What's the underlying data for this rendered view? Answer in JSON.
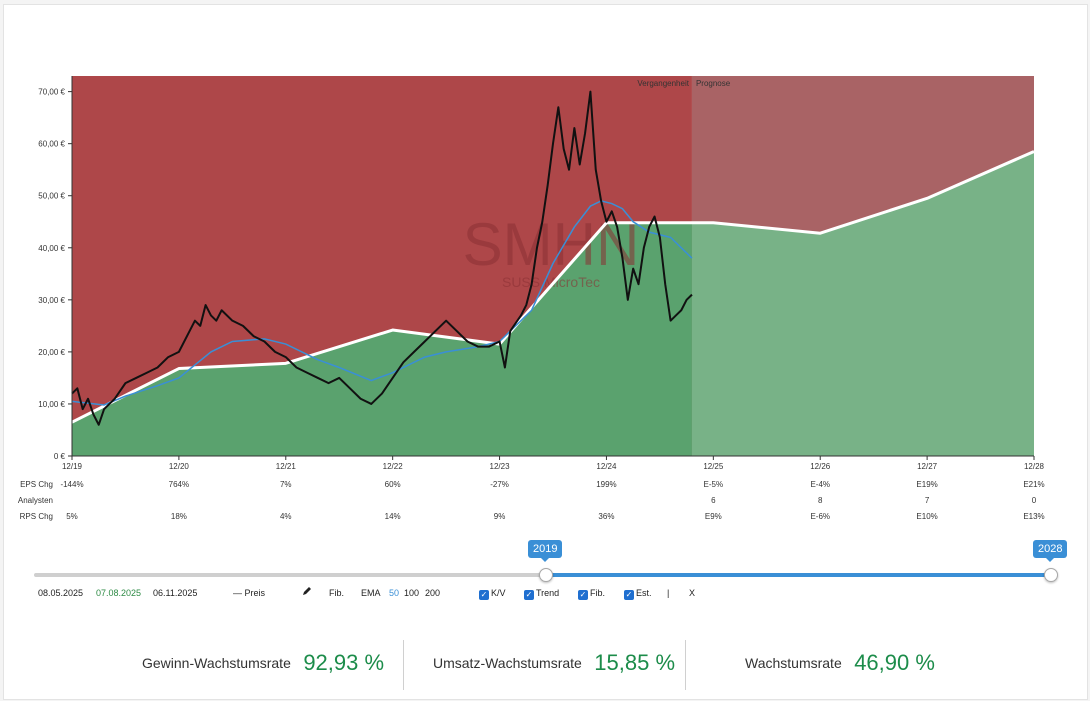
{
  "chart_data": {
    "type": "area",
    "watermark": {
      "ticker": "SMHN",
      "company": "SUSS MicroTec"
    },
    "regions": {
      "past_label": "Vergangenheit",
      "forecast_label": "Prognose"
    },
    "y_ticks": [
      "0 €",
      "10,00 €",
      "20,00 €",
      "30,00 €",
      "40,00 €",
      "50,00 €",
      "60,00 €",
      "70,00 €"
    ],
    "ylim": [
      0,
      73
    ],
    "x_ticks": [
      "12/19",
      "12/20",
      "12/21",
      "12/22",
      "12/23",
      "12/24",
      "12/25",
      "12/26",
      "12/27",
      "12/28"
    ],
    "forecast_start_year": 2024.8,
    "fair_value_line": {
      "x": [
        2019.0,
        2020.0,
        2021.0,
        2022.0,
        2023.0,
        2024.0,
        2024.8,
        2025.0,
        2026.0,
        2027.0,
        2028.0
      ],
      "y": [
        6.5,
        16.8,
        17.8,
        24.2,
        21.5,
        44.8,
        44.8,
        44.8,
        42.8,
        49.5,
        58.5
      ]
    },
    "price_series": {
      "name": "Preis",
      "x": [
        2019.0,
        2019.05,
        2019.1,
        2019.15,
        2019.2,
        2019.25,
        2019.3,
        2019.35,
        2019.4,
        2019.5,
        2019.6,
        2019.7,
        2019.8,
        2019.9,
        2020.0,
        2020.1,
        2020.15,
        2020.2,
        2020.25,
        2020.3,
        2020.35,
        2020.4,
        2020.5,
        2020.6,
        2020.7,
        2020.8,
        2020.9,
        2021.0,
        2021.1,
        2021.2,
        2021.3,
        2021.4,
        2021.5,
        2021.6,
        2021.7,
        2021.8,
        2021.9,
        2022.0,
        2022.1,
        2022.2,
        2022.3,
        2022.4,
        2022.5,
        2022.6,
        2022.7,
        2022.8,
        2022.9,
        2023.0,
        2023.05,
        2023.1,
        2023.2,
        2023.25,
        2023.3,
        2023.35,
        2023.4,
        2023.45,
        2023.5,
        2023.55,
        2023.6,
        2023.65,
        2023.7,
        2023.75,
        2023.8,
        2023.85,
        2023.9,
        2023.95,
        2024.0,
        2024.05,
        2024.1,
        2024.15,
        2024.2,
        2024.25,
        2024.3,
        2024.35,
        2024.4,
        2024.45,
        2024.5,
        2024.55,
        2024.6,
        2024.65,
        2024.7,
        2024.75,
        2024.8
      ],
      "y": [
        12,
        13,
        9,
        11,
        8,
        6,
        9,
        10,
        11,
        14,
        15,
        16,
        17,
        19,
        20,
        24,
        26,
        25,
        29,
        27,
        26,
        28,
        26,
        25,
        23,
        22,
        20,
        19,
        17,
        16,
        15,
        14,
        15,
        13,
        11,
        10,
        12,
        15,
        18,
        20,
        22,
        24,
        26,
        24,
        22,
        21,
        21,
        22,
        17,
        24,
        27,
        29,
        33,
        40,
        45,
        52,
        60,
        67,
        59,
        55,
        63,
        56,
        62,
        70,
        55,
        49,
        45,
        47,
        44,
        38,
        30,
        36,
        33,
        40,
        44,
        46,
        42,
        33,
        26,
        27,
        28,
        30,
        31
      ]
    },
    "ema_series": {
      "name": "EMA 50",
      "x": [
        2019.0,
        2019.3,
        2019.5,
        2019.8,
        2020.0,
        2020.3,
        2020.5,
        2020.8,
        2021.0,
        2021.3,
        2021.5,
        2021.8,
        2022.0,
        2022.3,
        2022.5,
        2022.8,
        2023.0,
        2023.3,
        2023.5,
        2023.7,
        2023.85,
        2023.95,
        2024.05,
        2024.15,
        2024.25,
        2024.4,
        2024.5,
        2024.6,
        2024.7,
        2024.8
      ],
      "y": [
        10.5,
        9.8,
        11.5,
        13.5,
        15,
        20,
        22,
        22.5,
        21.5,
        18.5,
        17,
        14.5,
        16,
        19,
        20,
        21,
        22,
        28,
        37,
        44,
        48,
        49,
        48.5,
        47.5,
        45,
        43,
        42.5,
        42,
        40,
        38
      ]
    },
    "table": {
      "rows": [
        {
          "label": "EPS Chg",
          "values": [
            "-144%",
            "764%",
            "7%",
            "60%",
            "-27%",
            "199%",
            "E-5%",
            "E-4%",
            "E19%",
            "E21%"
          ]
        },
        {
          "label": "Analysten",
          "values": [
            "",
            "",
            "",
            "",
            "",
            "",
            "6",
            "8",
            "7",
            "0"
          ]
        },
        {
          "label": "RPS Chg",
          "values": [
            "5%",
            "18%",
            "4%",
            "14%",
            "9%",
            "36%",
            "E9%",
            "E-6%",
            "E10%",
            "E13%"
          ]
        }
      ]
    },
    "colors": {
      "past_background": "#ae4749",
      "forecast_background": "#a96365",
      "past_area": "#5aa26e",
      "forecast_area": "#78b287",
      "fair_value": "#ffffff",
      "price": "#111111",
      "ema": "#3a8fd6"
    }
  },
  "slider": {
    "start_label": "2019",
    "end_label": "2028",
    "start_year": 2019,
    "end_year": 2028,
    "min_year": 2010,
    "max_year": 2028
  },
  "controls": {
    "date1": "08.05.2025",
    "date2": "07.08.2025",
    "date3": "06.11.2025",
    "price_label": "Preis",
    "fib_label": "Fib.",
    "ema_label": "EMA",
    "ema_50": "50",
    "ema_100": "100",
    "ema_200": "200",
    "kv_label": "K/V",
    "trend_label": "Trend",
    "fib_check_label": "Fib.",
    "est_label": "Est.",
    "separator": "|",
    "close_label": "X"
  },
  "summary": {
    "gewinn_label": "Gewinn-Wachstumsrate",
    "gewinn_value": "92,93 %",
    "umsatz_label": "Umsatz-Wachstumsrate",
    "umsatz_value": "15,85 %",
    "wachstum_label": "Wachstumsrate",
    "wachstum_value": "46,90 %"
  }
}
